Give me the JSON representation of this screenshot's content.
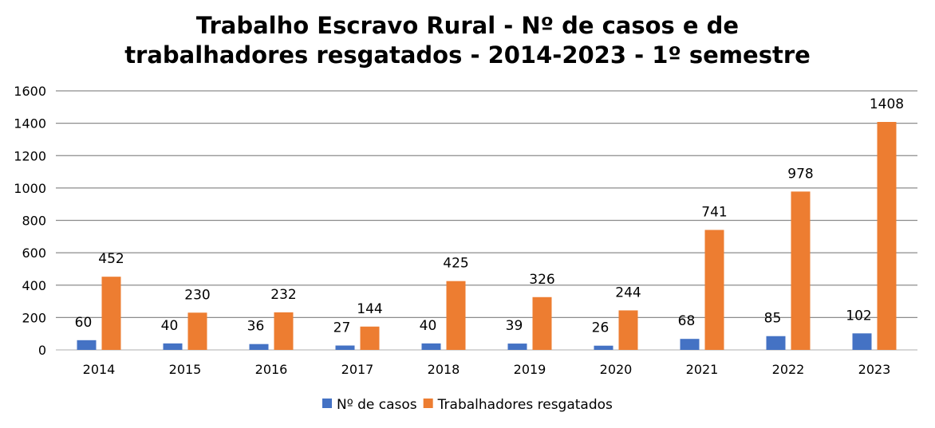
{
  "chart_data": {
    "type": "bar",
    "title": [
      "Trabalho Escravo Rural - Nº de casos e de",
      "trabalhadores resgatados - 2014-2023 - 1º semestre"
    ],
    "categories": [
      "2014",
      "2015",
      "2016",
      "2017",
      "2018",
      "2019",
      "2020",
      "2021",
      "2022",
      "2023"
    ],
    "series": [
      {
        "name": "Nº de casos",
        "color": "#4472C4",
        "values": [
          60,
          40,
          36,
          27,
          40,
          39,
          26,
          68,
          85,
          102
        ]
      },
      {
        "name": "Trabalhadores resgatados",
        "color": "#ED7D31",
        "values": [
          452,
          230,
          232,
          144,
          425,
          326,
          244,
          741,
          978,
          1408
        ]
      }
    ],
    "ylim": [
      0,
      1600
    ],
    "yticks": [
      0,
      200,
      400,
      600,
      800,
      1000,
      1200,
      1400,
      1600
    ],
    "grid": true,
    "legend_position": "bottom",
    "data_labels": true
  }
}
